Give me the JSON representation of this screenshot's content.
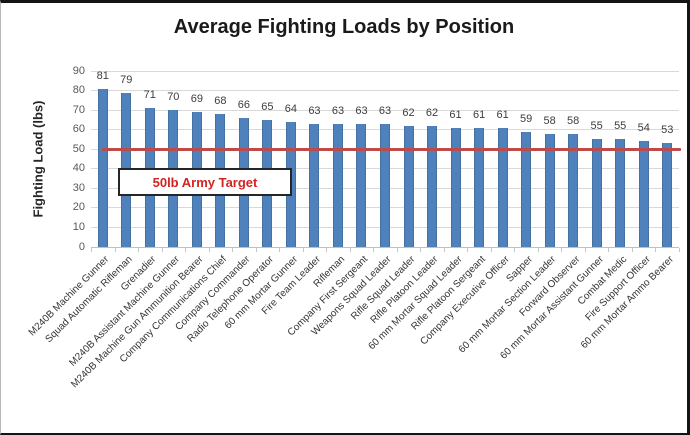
{
  "chart": {
    "title": "Average Fighting Loads by Position",
    "y_axis_title": "Fighting Load (lbs)"
  },
  "chart_data": {
    "type": "bar",
    "title": "Average Fighting Loads by Position",
    "xlabel": "",
    "ylabel": "Fighting Load (lbs)",
    "ylim": [
      0,
      90
    ],
    "ytick_step": 10,
    "grid": true,
    "legend": false,
    "bar_color": "#4f81bd",
    "categories": [
      "M240B Machine Gunner",
      "Squad Automatic Rifleman",
      "Grenadier",
      "M240B Assistant Machine Gunner",
      "M240B Machine Gun Ammunition Bearer",
      "Company Communications Chief",
      "Company Commander",
      "Radio Telephone Operator",
      "60 mm Mortar Gunner",
      "Fire Team Leader",
      "Rifleman",
      "Company First Sergeant",
      "Weapons Squad Leader",
      "Rifle Squad Leader",
      "Rifle Platoon Leader",
      "60 mm Mortar Squad Leader",
      "Rifle Platoon Sergeant",
      "Company Executive Officer",
      "Sapper",
      "60 mm Mortar Section Leader",
      "Forward Observer",
      "60 mm Mortar Assistant Gunner",
      "Combat Medic",
      "Fire Support Officer",
      "60 mm Mortar Ammo Bearer"
    ],
    "values": [
      81,
      79,
      71,
      70,
      69,
      68,
      66,
      65,
      64,
      63,
      63,
      63,
      63,
      62,
      62,
      61,
      61,
      61,
      59,
      58,
      58,
      55,
      55,
      54,
      53
    ],
    "target_line": {
      "value": 50,
      "label": "50lb Army Target",
      "line_color": "#be4b48",
      "label_color": "#d22323"
    }
  }
}
